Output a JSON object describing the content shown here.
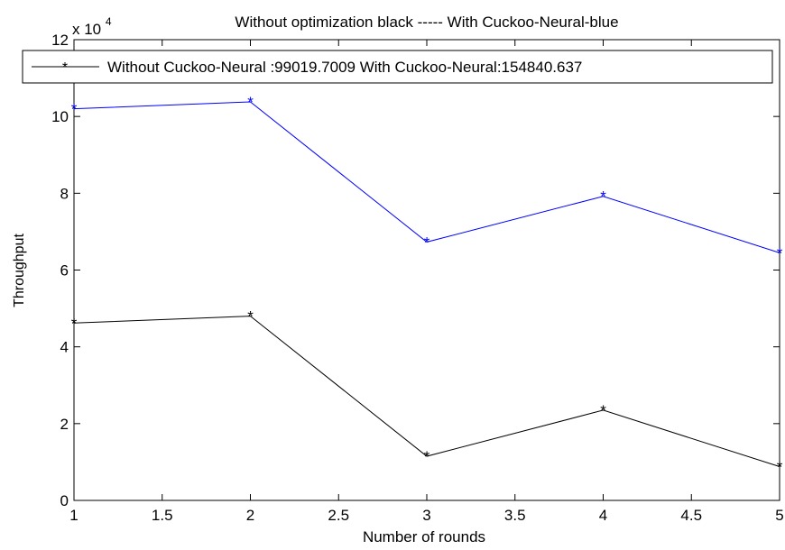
{
  "chart_data": {
    "type": "line",
    "title": "Without optimization black    ----- With Cuckoo-Neural-blue",
    "xlabel": "Number of rounds",
    "ylabel": "Throughput",
    "scale_multiplier": "x 10",
    "scale_exponent": "4",
    "legend_position": "top",
    "legend_text": "Without Cuckoo-Neural :99019.7009 With Cuckoo-Neural:154840.637",
    "xlim": [
      1,
      5
    ],
    "ylim": [
      0,
      12
    ],
    "xticks": [
      1,
      1.5,
      2,
      2.5,
      3,
      3.5,
      4,
      4.5,
      5
    ],
    "yticks": [
      0,
      2,
      4,
      6,
      8,
      10,
      12
    ],
    "grid": false,
    "marker": "*",
    "x": [
      1,
      2,
      3,
      4,
      5
    ],
    "series": [
      {
        "color": "#0000ff",
        "values": [
          10.2,
          10.38,
          6.73,
          7.92,
          6.45
        ]
      },
      {
        "color": "#000000",
        "values": [
          4.62,
          4.8,
          1.15,
          2.35,
          0.88
        ]
      }
    ]
  }
}
